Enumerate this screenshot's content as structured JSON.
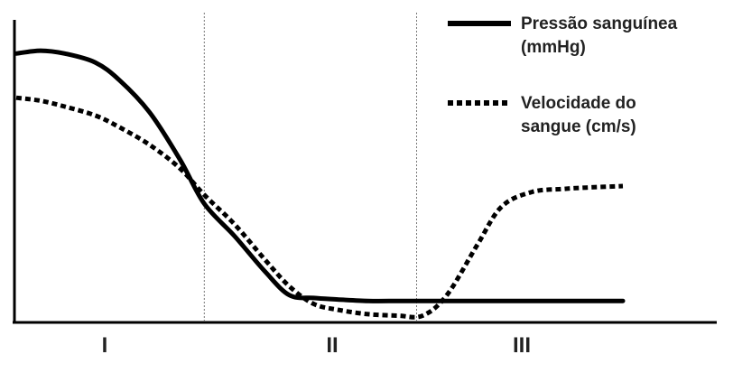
{
  "chart_data": {
    "type": "line",
    "title": "",
    "xlabel": "",
    "ylabel": "",
    "xlim": [
      0,
      100
    ],
    "ylim": [
      0,
      100
    ],
    "grid": false,
    "legend_position": "top-right",
    "regions": [
      {
        "label": "I"
      },
      {
        "label": "II"
      },
      {
        "label": "III"
      }
    ],
    "dividers": [
      31,
      66
    ],
    "series": [
      {
        "name": "Pressão sanguínea (mmHg)",
        "style": "solid",
        "color": "#000000",
        "x": [
          0,
          4,
          8,
          13,
          17,
          22,
          27,
          31,
          36,
          41,
          45,
          49,
          53,
          58,
          63,
          67,
          71,
          76,
          80,
          85,
          90,
          94,
          100
        ],
        "y": [
          91,
          92,
          91,
          88,
          82,
          71,
          55,
          40,
          29,
          17,
          9,
          8,
          7.5,
          7,
          7,
          7,
          7,
          7,
          7,
          7,
          7,
          7,
          7
        ]
      },
      {
        "name": "Velocidade do sangue (cm/s)",
        "style": "dotted",
        "color": "#000000",
        "x": [
          0,
          4,
          8,
          13,
          17,
          22,
          27,
          31,
          36,
          41,
          45,
          49,
          53,
          58,
          63,
          67,
          71,
          76,
          80,
          85,
          90,
          94,
          100
        ],
        "y": [
          76,
          75,
          73,
          70,
          66,
          60,
          52,
          43,
          33,
          21,
          12,
          6,
          4,
          2.5,
          2,
          2,
          9,
          26,
          39,
          44,
          45,
          45.5,
          46
        ]
      }
    ],
    "legend": [
      {
        "text_line1": "Pressão sanguínea",
        "text_line2": "(mmHg)"
      },
      {
        "text_line1": "Velocidade do",
        "text_line2": "sangue (cm/s)"
      }
    ]
  }
}
